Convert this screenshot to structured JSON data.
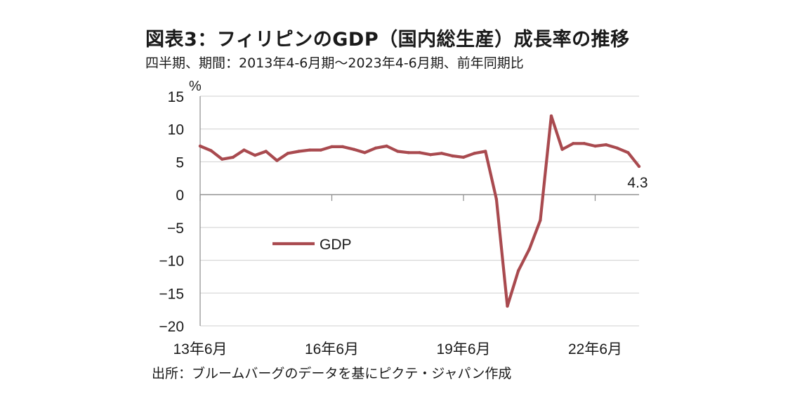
{
  "header": {
    "title": "図表3：フィリピンのGDP（国内総生産）成長率の推移",
    "subtitle": "四半期、期間：2013年4-6月期～2023年4-6月期、前年同期比"
  },
  "footer": {
    "source": "出所：ブルームバーグのデータを基にピクテ・ジャパン作成"
  },
  "chart_data": {
    "type": "line",
    "title": "図表3：フィリピンのGDP（国内総生産）成長率の推移",
    "subtitle": "四半期、期間：2013年4-6月期～2023年4-6月期、前年同期比",
    "ylabel": "%",
    "ylim": [
      -20,
      15
    ],
    "yticks": [
      15,
      10,
      5,
      0,
      -5,
      -10,
      -15,
      -20
    ],
    "ytick_labels": [
      "15",
      "10",
      "5",
      "0",
      "−5",
      "−10",
      "−15",
      "−20"
    ],
    "xtick_labels": [
      {
        "label": "13年6月",
        "index": 0
      },
      {
        "label": "16年6月",
        "index": 12
      },
      {
        "label": "19年6月",
        "index": 24
      },
      {
        "label": "22年6月",
        "index": 36
      }
    ],
    "grid": "horizontal",
    "legend_position": "center-left",
    "series": [
      {
        "name": "GDP",
        "color": "#a94a4f",
        "x": [
          "13年6月",
          "13年9月",
          "13年12月",
          "14年3月",
          "14年6月",
          "14年9月",
          "14年12月",
          "15年3月",
          "15年6月",
          "15年9月",
          "15年12月",
          "16年3月",
          "16年6月",
          "16年9月",
          "16年12月",
          "17年3月",
          "17年6月",
          "17年9月",
          "17年12月",
          "18年3月",
          "18年6月",
          "18年9月",
          "18年12月",
          "19年3月",
          "19年6月",
          "19年9月",
          "19年12月",
          "20年3月",
          "20年6月",
          "20年9月",
          "20年12月",
          "21年3月",
          "21年6月",
          "21年9月",
          "21年12月",
          "22年3月",
          "22年6月",
          "22年9月",
          "22年12月",
          "23年3月",
          "23年6月"
        ],
        "values": [
          7.4,
          6.7,
          5.4,
          5.7,
          6.8,
          6.0,
          6.6,
          5.2,
          6.3,
          6.6,
          6.8,
          6.8,
          7.3,
          7.3,
          6.9,
          6.4,
          7.1,
          7.4,
          6.6,
          6.4,
          6.4,
          6.1,
          6.3,
          5.9,
          5.7,
          6.3,
          6.6,
          -0.7,
          -17.0,
          -11.6,
          -8.3,
          -3.9,
          12.0,
          6.9,
          7.8,
          7.8,
          7.4,
          7.6,
          7.1,
          6.4,
          4.3
        ]
      }
    ],
    "annotations": [
      {
        "text": "4.3",
        "target": "last-point"
      }
    ]
  }
}
